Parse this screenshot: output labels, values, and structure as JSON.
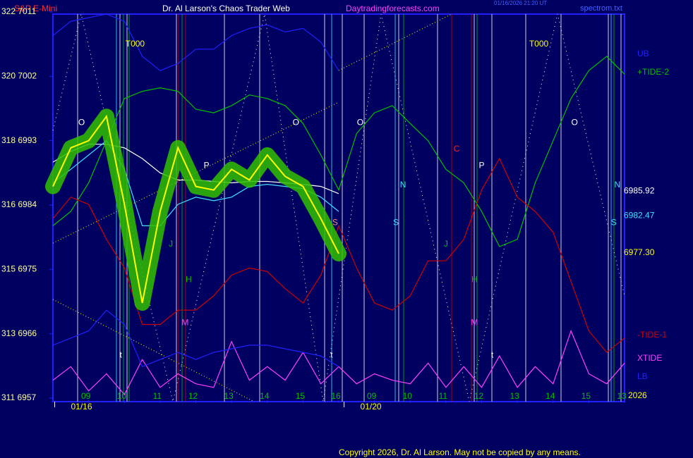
{
  "chart_data": {
    "type": "line",
    "title": "Dr. Al Larson's Chaos Trader Web",
    "header_left": "S&P E-Mini",
    "header_site": "Daytradingforecasts.com",
    "header_file": "spectrom.txt",
    "header_time": "01/16/2026 21:20 UT",
    "footer": "Copyright 2026, Dr. Al Larson. May not be copied by any means.",
    "year_label": "2026",
    "x": [
      0,
      0.5,
      1,
      1.5,
      2,
      2.5,
      3,
      3.5,
      4,
      4.5,
      5,
      5.5,
      6,
      6.5,
      7,
      7.5,
      8,
      8.5,
      9,
      9.5,
      10,
      10.5,
      11,
      11.5,
      12,
      12.5,
      13,
      13.5,
      14,
      14.5,
      15,
      15.5,
      16
    ],
    "xlim": [
      0,
      16
    ],
    "xticks": [
      {
        "value": 1,
        "label": "09"
      },
      {
        "value": 2,
        "label": "10"
      },
      {
        "value": 3,
        "label": "11"
      },
      {
        "value": 4,
        "label": "12"
      },
      {
        "value": 5,
        "label": "13"
      },
      {
        "value": 6,
        "label": "14"
      },
      {
        "value": 7,
        "label": "15"
      },
      {
        "value": 8,
        "label": "16"
      },
      {
        "value": 9,
        "label": "09"
      },
      {
        "value": 10,
        "label": "10"
      },
      {
        "value": 11,
        "label": "11"
      },
      {
        "value": 12,
        "label": "12"
      },
      {
        "value": 13,
        "label": "13"
      },
      {
        "value": 14,
        "label": "14"
      },
      {
        "value": 15,
        "label": "15"
      },
      {
        "value": 16,
        "label": "13"
      }
    ],
    "date_labels": [
      {
        "value": 0.8,
        "label": "01/16"
      },
      {
        "value": 8.9,
        "label": "01/20"
      }
    ],
    "ylim": [
      6957,
      7011
    ],
    "yticks": [
      {
        "value": 7011,
        "label": "322 7011"
      },
      {
        "value": 7002,
        "label": "320 7002"
      },
      {
        "value": 6993,
        "label": "318 6993"
      },
      {
        "value": 6984,
        "label": "316 6984"
      },
      {
        "value": 6975,
        "label": "315 6975"
      },
      {
        "value": 6966,
        "label": "313 6966"
      },
      {
        "value": 6957,
        "label": "311 6957"
      }
    ],
    "price_labels": [
      {
        "value": 6985.92,
        "label": "6985.92",
        "color": "#ffffff"
      },
      {
        "value": 6982.47,
        "label": "6982.47",
        "color": "#40e0ff"
      },
      {
        "value": 6977.3,
        "label": "6977.30",
        "color": "#ffff00"
      }
    ],
    "series": [
      {
        "name": "UB",
        "color": "#2020ff",
        "values": [
          7007.7,
          7009.7,
          7010.2,
          7010.7,
          7009.7,
          7004.8,
          7002.8,
          7003.8,
          7005.8,
          7005.8,
          7007.7,
          7008.7,
          7009.2,
          7008.2,
          7008.7,
          7006.8,
          7002.8,
          null,
          null,
          null,
          null,
          null,
          null,
          null,
          null,
          null,
          null,
          null,
          null,
          null,
          null,
          null,
          null
        ]
      },
      {
        "name": "+TIDE-2",
        "color": "#00c000",
        "values": [
          6981.1,
          6983.1,
          6987.1,
          6993.0,
          6998.9,
          6999.9,
          7000.4,
          6999.9,
          6997.4,
          6996.9,
          6997.9,
          6999.4,
          6998.9,
          6997.9,
          6995.4,
          6991.0,
          6986.1,
          6994.0,
          6996.9,
          6997.9,
          6995.4,
          6993.0,
          6989.0,
          6987.1,
          6983.1,
          6978.2,
          6979.2,
          6987.1,
          6993.0,
          6998.9,
          7002.8,
          7004.8,
          7002.3
        ]
      },
      {
        "name": "-TIDE-1",
        "color": "#d00000",
        "values": [
          6982.1,
          6985.1,
          6984.1,
          6979.2,
          6975.2,
          6967.3,
          6967.3,
          6969.3,
          6969.3,
          6971.3,
          6974.2,
          6975.2,
          6974.7,
          6972.3,
          6970.3,
          6974.2,
          6981.1,
          6975.2,
          6970.3,
          6969.3,
          6971.3,
          6976.2,
          6976.2,
          6979.2,
          6986.1,
          6990.5,
          6985.1,
          6983.1,
          6980.2,
          6973.3,
          6966.4,
          6963.4,
          6965.4
        ]
      },
      {
        "name": "XTIDE",
        "color": "#ff40ff",
        "values": [
          6959.5,
          6961.4,
          6958.0,
          6960.4,
          6957.5,
          6962.4,
          6958.5,
          6960.4,
          6959.0,
          6958.5,
          6964.9,
          6959.5,
          6961.4,
          6959.5,
          6963.4,
          6959.0,
          6961.4,
          6959.0,
          6960.4,
          6959.5,
          6959.0,
          6961.9,
          6958.5,
          6961.4,
          6958.5,
          6962.9,
          6958.5,
          6961.4,
          6959.0,
          6966.4,
          6960.4,
          6959.0,
          6961.9
        ]
      },
      {
        "name": "LB",
        "color": "#2020ff",
        "values": [
          6964.4,
          6965.4,
          6966.4,
          6969.3,
          6967.3,
          6961.4,
          6962.4,
          6963.4,
          6962.4,
          6963.4,
          6963.9,
          6964.4,
          6964.4,
          6963.9,
          6963.4,
          6962.9,
          6961.4,
          null,
          null,
          null,
          null,
          null,
          null,
          null,
          null,
          null,
          null,
          null,
          null,
          null,
          null,
          null,
          null
        ]
      },
      {
        "color": "#ffffff",
        "values": [
          6990.0,
          6991.5,
          6992.5,
          6992.5,
          6992.0,
          6990.5,
          6988.5,
          6987.5,
          6987.5,
          6987.3,
          6987.1,
          6987.3,
          6987.3,
          6987.1,
          6986.9,
          6986.6,
          6985.6,
          null,
          null,
          null,
          null,
          null,
          null,
          null,
          null,
          null,
          null,
          null,
          null,
          null,
          null,
          null,
          null
        ]
      },
      {
        "color": "#40e0ff",
        "values": [
          6987.1,
          6989.0,
          6991.0,
          6993.0,
          6989.0,
          6981.1,
          6981.1,
          6984.1,
          6985.1,
          6984.6,
          6985.1,
          6986.6,
          6986.9,
          6986.6,
          6986.3,
          6985.1,
          6983.1,
          null,
          null,
          null,
          null,
          null,
          null,
          null,
          null,
          null,
          null,
          null,
          null,
          null,
          null,
          null,
          null
        ]
      },
      {
        "color": "#ffff00",
        "values": [
          6986.6,
          6992.0,
          6993.0,
          6996.4,
          6984.1,
          6970.3,
          6983.1,
          6992.0,
          6986.6,
          6986.1,
          6989.0,
          6987.5,
          6991.0,
          6988.0,
          6986.6,
          6982.1,
          6977.2,
          null,
          null,
          null,
          null,
          null,
          null,
          null,
          null,
          null,
          null,
          null,
          null,
          null,
          null,
          null,
          null
        ]
      }
    ],
    "annotations": [
      {
        "text": "T000",
        "x": 2.3,
        "y": 7006.5,
        "color": "#ffff00"
      },
      {
        "text": "T000",
        "x": 13.6,
        "y": 7006.5,
        "color": "#ffff00"
      },
      {
        "text": "O",
        "x": 0.8,
        "y": 6995.5,
        "color": "#ffffff"
      },
      {
        "text": "O",
        "x": 6.8,
        "y": 6995.5,
        "color": "#ffffff"
      },
      {
        "text": "O",
        "x": 8.6,
        "y": 6995.5,
        "color": "#ffffff"
      },
      {
        "text": "O",
        "x": 14.6,
        "y": 6995.5,
        "color": "#ffffff"
      },
      {
        "text": "P",
        "x": 4.3,
        "y": 6989.5,
        "color": "#ffffff"
      },
      {
        "text": "P",
        "x": 12.0,
        "y": 6989.5,
        "color": "#ffffff"
      },
      {
        "text": "N",
        "x": 9.8,
        "y": 6986.8,
        "color": "#40e0ff"
      },
      {
        "text": "N",
        "x": 15.8,
        "y": 6986.8,
        "color": "#40e0ff"
      },
      {
        "text": "S",
        "x": 7.9,
        "y": 6981.5,
        "color": "#ff8080"
      },
      {
        "text": "S",
        "x": 9.6,
        "y": 6981.5,
        "color": "#40e0ff"
      },
      {
        "text": "S",
        "x": 15.7,
        "y": 6981.5,
        "color": "#40e0ff"
      },
      {
        "text": "C",
        "x": 11.3,
        "y": 6991.8,
        "color": "#ff2020"
      },
      {
        "text": "J",
        "x": 3.3,
        "y": 6978.5,
        "color": "#00c000"
      },
      {
        "text": "J",
        "x": 11.0,
        "y": 6978.5,
        "color": "#00c000"
      },
      {
        "text": "H",
        "x": 3.8,
        "y": 6973.5,
        "color": "#00c000"
      },
      {
        "text": "H",
        "x": 11.8,
        "y": 6973.5,
        "color": "#00c000"
      },
      {
        "text": "M",
        "x": 3.7,
        "y": 6967.5,
        "color": "#ff40ff"
      },
      {
        "text": "M",
        "x": 11.8,
        "y": 6967.5,
        "color": "#ff40ff"
      },
      {
        "text": "t",
        "x": 1.9,
        "y": 6963.0,
        "color": "#ffffff"
      },
      {
        "text": "t",
        "x": 7.8,
        "y": 6963.0,
        "color": "#ffffff"
      },
      {
        "text": "t",
        "x": 12.3,
        "y": 6963.0,
        "color": "#ffffff"
      }
    ]
  }
}
